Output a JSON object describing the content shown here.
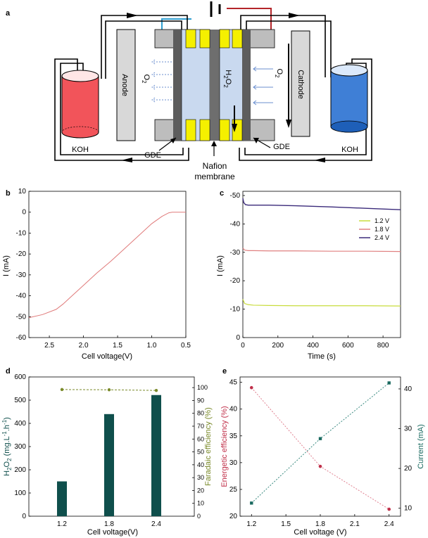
{
  "figure": {
    "panel_labels": {
      "a": "a",
      "b": "b",
      "c": "c",
      "d": "d",
      "e": "e"
    },
    "colors": {
      "red_wire": "#b4252a",
      "blue_wire": "#2f9ecf",
      "yellow": "#f5f000",
      "gdegrey": "#5d5d5d",
      "membrane": "#6e6e6e",
      "koh_red": "#f2545a",
      "koh_blue": "#3f7fd6",
      "teal": "#0f4f4c",
      "b_line": "#e07a7a",
      "c_12": "#c8dc3c",
      "c_18": "#e08080",
      "c_24": "#3a2a7a",
      "d_eff": "#7a8a2a",
      "e_red": "#c0304a",
      "e_teal": "#1a6a60"
    }
  },
  "schematic": {
    "anode_label": "Anode",
    "cathode_label": "Cathode",
    "o2_left": "O",
    "o2_left_sub": "2",
    "o2_right": "O",
    "o2_right_sub": "2",
    "h2o2": "H",
    "h2o2_sub1": "2",
    "h2o2_o": "O",
    "h2o2_sub2": "2",
    "koh_left": "KOH",
    "koh_right": "KOH",
    "gde_left": "GDE",
    "gde_right": "GDE",
    "membrane_line1": "Nafion",
    "membrane_line2": "membrane"
  },
  "chart_data": [
    {
      "panel": "b",
      "type": "line",
      "xlabel": "Cell voltage(V)",
      "ylabel": "I (mA)",
      "xlim": [
        2.8,
        0.5
      ],
      "ylim": [
        -60,
        10
      ],
      "xticks": [
        2.5,
        2.0,
        1.5,
        1.0,
        0.5
      ],
      "xtick_labels": [
        "2.5",
        "2.0",
        "1.5",
        "1.0",
        "0.5"
      ],
      "yticks": [
        10,
        0,
        -10,
        -20,
        -30,
        -40,
        -50,
        -60
      ],
      "ytick_labels": [
        "10",
        "0",
        "-10",
        "-20",
        "-30",
        "-40",
        "-50",
        "-60"
      ],
      "series": [
        {
          "name": "I-V",
          "x": [
            2.8,
            2.6,
            2.4,
            2.3,
            2.2,
            2.0,
            1.8,
            1.6,
            1.4,
            1.2,
            1.0,
            0.85,
            0.75,
            0.7,
            0.6,
            0.5
          ],
          "y": [
            -50.5,
            -49,
            -46.5,
            -44,
            -41,
            -35,
            -29,
            -23.5,
            -17.5,
            -11.5,
            -5.5,
            -2,
            -0.3,
            0,
            0,
            0
          ]
        }
      ]
    },
    {
      "panel": "c",
      "type": "line",
      "xlabel": "Time (s)",
      "ylabel": "I (mA)",
      "xlim": [
        0,
        900
      ],
      "ylim": [
        -50,
        0
      ],
      "xticks": [
        0,
        200,
        400,
        600,
        800
      ],
      "xtick_labels": [
        "0",
        "200",
        "400",
        "600",
        "800"
      ],
      "yticks": [
        -50,
        -40,
        -30,
        -20,
        -10,
        0
      ],
      "ytick_labels": [
        "-50",
        "-40",
        "-30",
        "-20",
        "-10",
        "0"
      ],
      "legend": "right",
      "series": [
        {
          "name": "1.2 V",
          "x": [
            0,
            10,
            30,
            60,
            150,
            300,
            500,
            700,
            900
          ],
          "y": [
            -13.5,
            -12,
            -11.6,
            -11.4,
            -11.3,
            -11.2,
            -11.2,
            -11.2,
            -11.1
          ]
        },
        {
          "name": "1.8 V",
          "x": [
            0,
            10,
            30,
            60,
            150,
            300,
            500,
            700,
            900
          ],
          "y": [
            -31.5,
            -30.8,
            -30.6,
            -30.6,
            -30.5,
            -30.5,
            -30.4,
            -30.4,
            -30.3
          ]
        },
        {
          "name": "2.4 V",
          "x": [
            0,
            5,
            15,
            30,
            60,
            150,
            300,
            500,
            700,
            900
          ],
          "y": [
            -49,
            -47.5,
            -46.8,
            -46.6,
            -46.6,
            -46.6,
            -46.4,
            -46,
            -45.5,
            -45
          ]
        }
      ]
    },
    {
      "panel": "d",
      "type": "bar",
      "xlabel": "Cell voltage(V)",
      "ylabel": "H2O2 (mg.L-1.h-1)",
      "ylabel_parts": {
        "a": "H",
        "b": "2",
        "c": "O",
        "d": "2",
        "e": " (mg.L",
        "f": "-1",
        "g": ".h",
        "h": "-1",
        "i": ")"
      },
      "y2label": "Faradaic efficiency (%)",
      "categories": [
        "1.2",
        "1.8",
        "2.4"
      ],
      "ylim": [
        0,
        600
      ],
      "yticks": [
        0,
        100,
        200,
        300,
        400,
        500,
        600
      ],
      "ytick_labels": [
        "0",
        "100",
        "200",
        "300",
        "400",
        "500",
        "600"
      ],
      "y2lim": [
        0,
        105
      ],
      "y2ticks": [
        0,
        10,
        20,
        30,
        40,
        50,
        60,
        70,
        80,
        90,
        100
      ],
      "y2tick_labels": [
        "0",
        "10",
        "20",
        "30",
        "40",
        "50",
        "60",
        "70",
        "80",
        "90",
        "100"
      ],
      "series": [
        {
          "name": "H2O2 production rate",
          "axis": "left",
          "values": [
            150,
            440,
            522
          ]
        },
        {
          "name": "Faradaic efficiency",
          "axis": "right",
          "values": [
            98.5,
            98.3,
            97.8
          ]
        }
      ]
    },
    {
      "panel": "e",
      "type": "line",
      "xlabel": "Cell voltage (V)",
      "ylabel": "Energetic efficiency (%)",
      "y2label": "Current (mA)",
      "xlim": [
        1.1,
        2.5
      ],
      "xticks": [
        1.2,
        1.5,
        1.8,
        2.1,
        2.4
      ],
      "xtick_labels": [
        "1.2",
        "1.5",
        "1.8",
        "2.1",
        "2.4"
      ],
      "ylim": [
        20,
        46
      ],
      "yticks": [
        20,
        25,
        30,
        35,
        40,
        45
      ],
      "ytick_labels": [
        "20",
        "25",
        "30",
        "35",
        "40",
        "45"
      ],
      "y2lim": [
        8,
        43
      ],
      "y2ticks": [
        10,
        20,
        30,
        40
      ],
      "y2tick_labels": [
        "10",
        "20",
        "30",
        "40"
      ],
      "series": [
        {
          "name": "Energetic efficiency",
          "axis": "left",
          "x": [
            1.2,
            1.8,
            2.4
          ],
          "y": [
            44,
            29.3,
            21.3
          ]
        },
        {
          "name": "Current",
          "axis": "right",
          "x": [
            1.2,
            1.8,
            2.4
          ],
          "y": [
            11.3,
            27.5,
            41.5
          ]
        }
      ]
    }
  ]
}
